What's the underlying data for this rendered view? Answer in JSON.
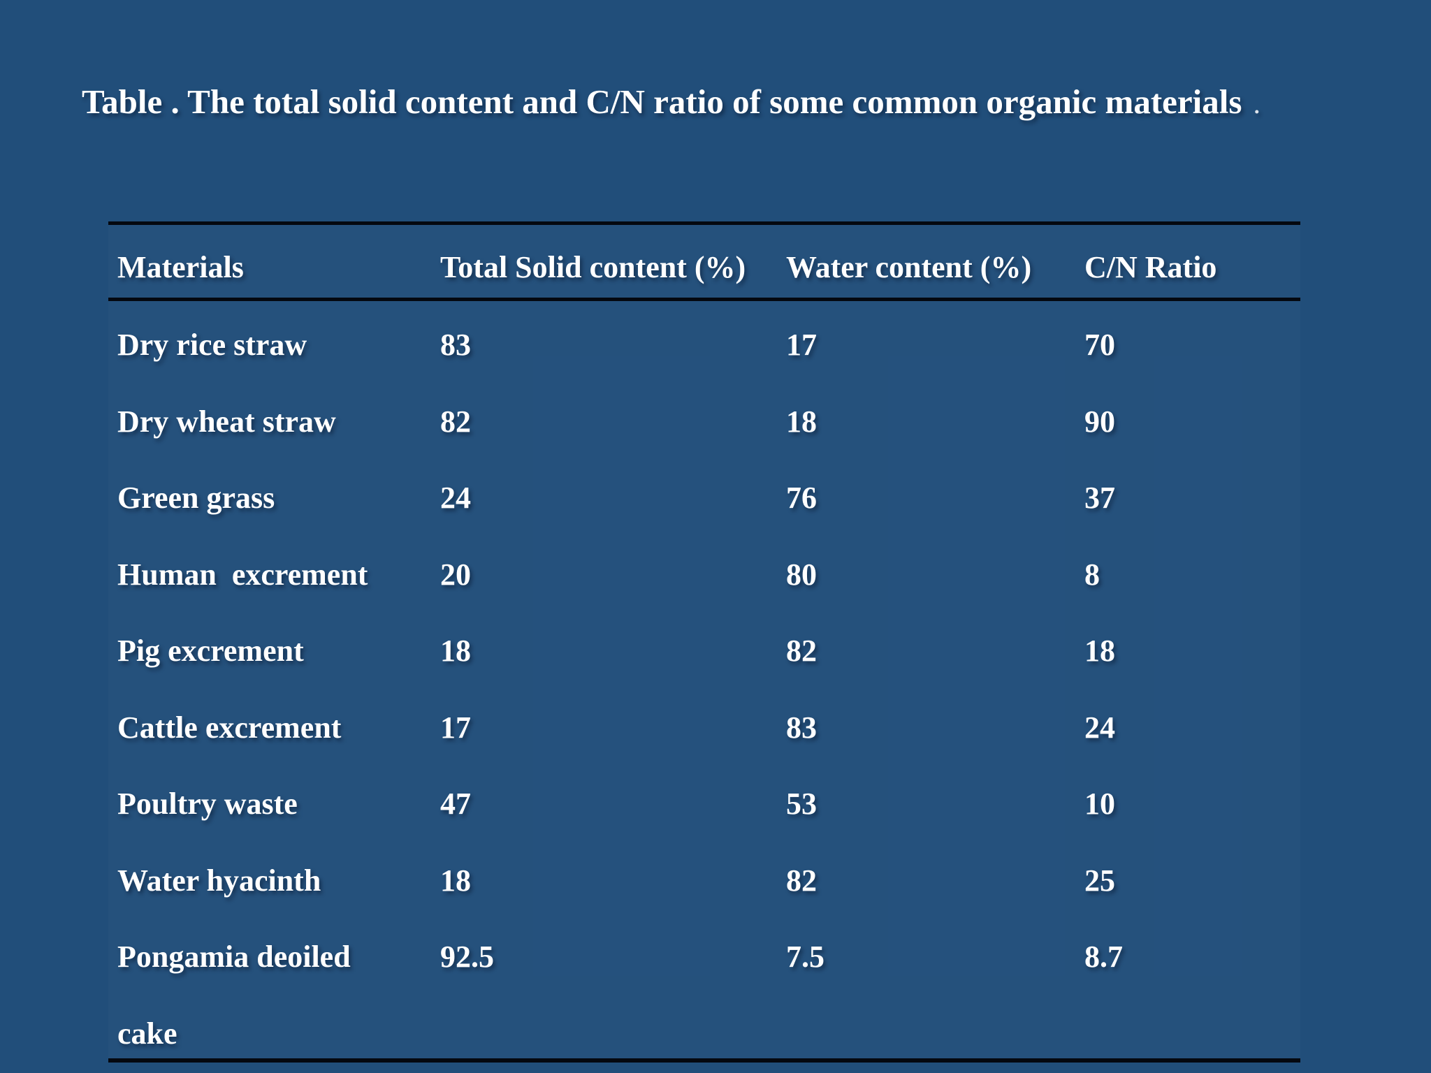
{
  "colors": {
    "background": "#214E7A",
    "text": "#FFFFFF",
    "rule": "#04080F"
  },
  "title": {
    "text": "Table . The total solid content and C/N ratio of some common organic materials",
    "trailing_period": "."
  },
  "table": {
    "columns": [
      "Materials",
      "Total Solid content (%)",
      "Water content (%)",
      "C/N Ratio"
    ],
    "rows": [
      {
        "material": "Dry rice straw",
        "total_solid": "83",
        "water": "17",
        "cn_ratio": "70"
      },
      {
        "material": "Dry wheat straw",
        "total_solid": "82",
        "water": "18",
        "cn_ratio": "90"
      },
      {
        "material": "Green grass",
        "total_solid": "24",
        "water": "76",
        "cn_ratio": "37"
      },
      {
        "material": "Human  excrement",
        "total_solid": "20",
        "water": "80",
        "cn_ratio": "8"
      },
      {
        "material": "Pig excrement",
        "total_solid": "18",
        "water": "82",
        "cn_ratio": "18"
      },
      {
        "material": "Cattle excrement",
        "total_solid": "17",
        "water": "83",
        "cn_ratio": "24"
      },
      {
        "material": "Poultry waste",
        "total_solid": "47",
        "water": "53",
        "cn_ratio": "10"
      },
      {
        "material": "Water hyacinth",
        "total_solid": "18",
        "water": "82",
        "cn_ratio": "25"
      },
      {
        "material_lines": [
          "Pongamia deoiled",
          "cake"
        ],
        "total_solid": "92.5",
        "water": "7.5",
        "cn_ratio": "8.7"
      }
    ]
  }
}
